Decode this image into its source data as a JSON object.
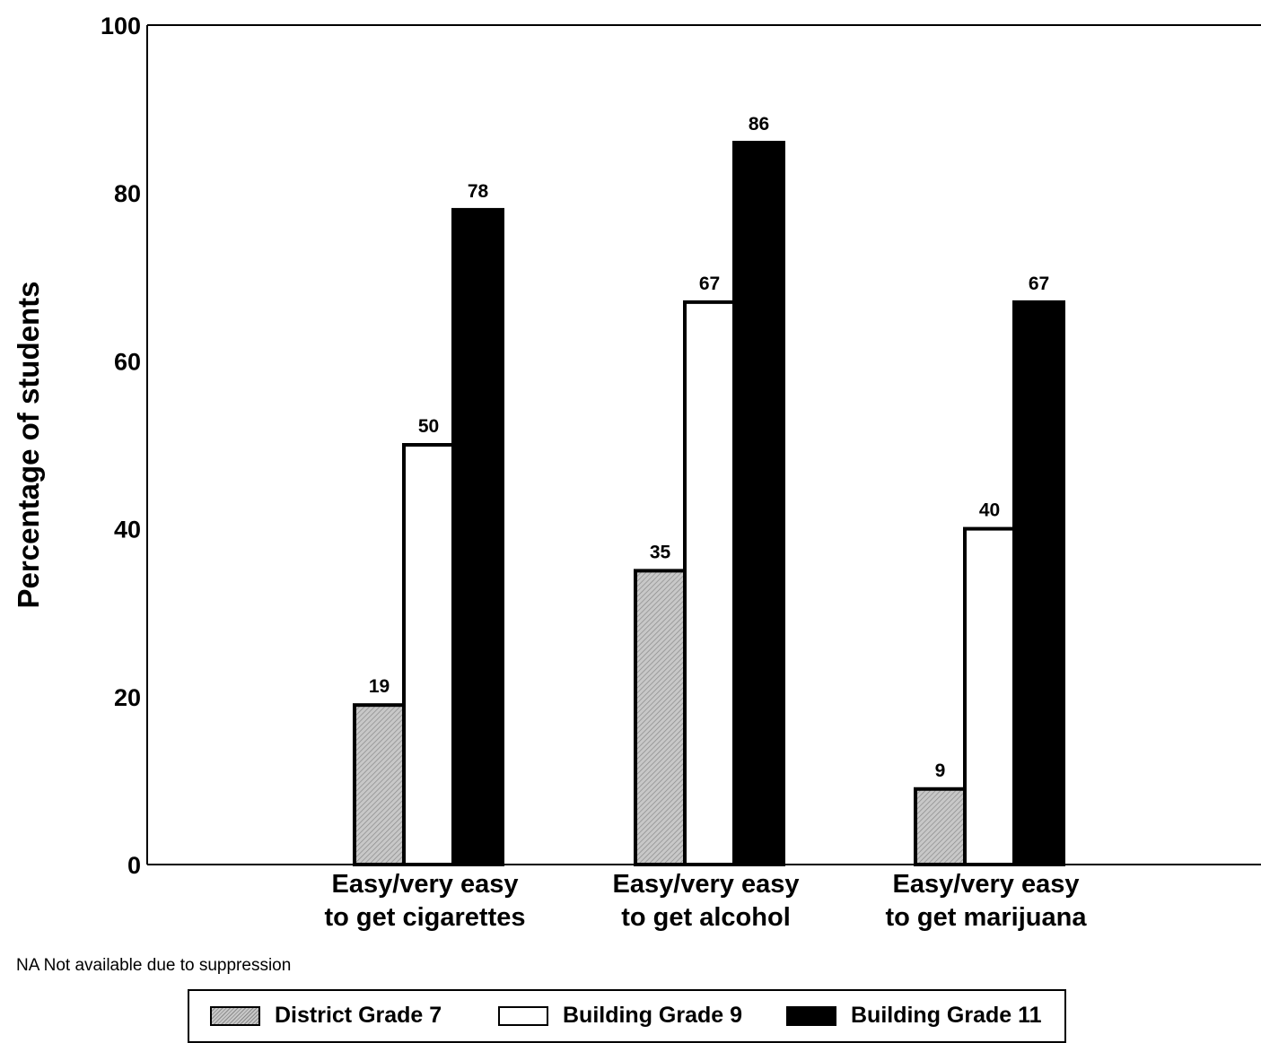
{
  "chart_data": {
    "type": "bar",
    "categories": [
      [
        "Easy/very easy",
        "to get cigarettes"
      ],
      [
        "Easy/very easy",
        "to get alcohol"
      ],
      [
        "Easy/very easy",
        "to get marijuana"
      ]
    ],
    "series": [
      {
        "name": "District Grade 7",
        "values": [
          19,
          35,
          9
        ],
        "fill": "hatch-gray"
      },
      {
        "name": "Building Grade 9",
        "values": [
          50,
          67,
          40
        ],
        "fill": "#ffffff"
      },
      {
        "name": "Building Grade 11",
        "values": [
          78,
          86,
          67
        ],
        "fill": "#000000"
      }
    ],
    "ylabel": "Percentage of students",
    "xlabel": "",
    "ylim": [
      0,
      100
    ],
    "yticks": [
      0,
      20,
      40,
      60,
      80,
      100
    ],
    "grid": false,
    "legend_position": "bottom",
    "note": "NA Not available due to suppression"
  }
}
